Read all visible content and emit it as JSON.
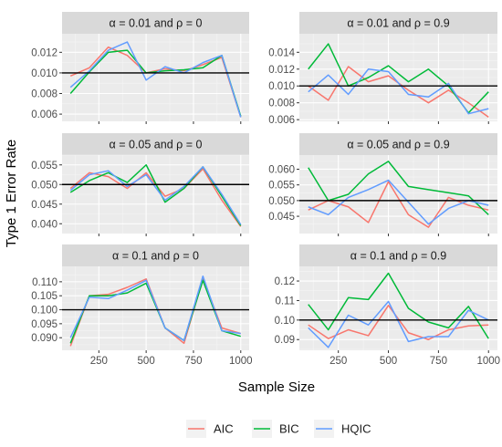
{
  "chart_data": {
    "type": "line",
    "xlabel": "Sample Size",
    "ylabel": "Type 1 Error Rate",
    "legend": {
      "position": "bottom",
      "entries": [
        "AIC",
        "BIC",
        "HQIC"
      ]
    },
    "colors": {
      "AIC": "#F8766D",
      "BIC": "#00BA38",
      "HQIC": "#619CFF"
    },
    "reference_line_color": "#000000",
    "grid": true,
    "xlim": [
      100,
      1000
    ],
    "xticks": [
      250,
      500,
      750,
      1000
    ],
    "x": [
      100,
      200,
      300,
      400,
      500,
      600,
      700,
      800,
      900,
      1000
    ],
    "panels": [
      {
        "title": "α = 0.01 and ρ = 0",
        "ylim": [
          0.0053,
          0.0138
        ],
        "yticks": [
          0.006,
          0.008,
          0.01,
          0.012
        ],
        "ytick_labels": [
          "0.006",
          "0.008",
          "0.010",
          "0.012"
        ],
        "reference": 0.01,
        "series": [
          {
            "name": "AIC",
            "values": [
              0.0097,
              0.0105,
              0.0125,
              0.0117,
              0.01,
              0.0104,
              0.0102,
              0.0108,
              0.0115,
              0.0057
            ]
          },
          {
            "name": "BIC",
            "values": [
              0.008,
              0.0101,
              0.012,
              0.0122,
              0.01,
              0.0102,
              0.0103,
              0.0105,
              0.0117,
              0.0058
            ]
          },
          {
            "name": "HQIC",
            "values": [
              0.0086,
              0.0102,
              0.0122,
              0.013,
              0.0093,
              0.0106,
              0.01,
              0.011,
              0.0117,
              0.0057
            ]
          }
        ]
      },
      {
        "title": "α = 0.01 and ρ = 0.9",
        "ylim": [
          0.0058,
          0.0162
        ],
        "yticks": [
          0.006,
          0.008,
          0.01,
          0.012,
          0.014
        ],
        "ytick_labels": [
          "0.006",
          "0.008",
          "0.010",
          "0.012",
          "0.014"
        ],
        "reference": 0.01,
        "series": [
          {
            "name": "AIC",
            "values": [
              0.01,
              0.0083,
              0.0123,
              0.0105,
              0.0112,
              0.0095,
              0.008,
              0.0095,
              0.008,
              0.0063
            ]
          },
          {
            "name": "BIC",
            "values": [
              0.012,
              0.015,
              0.01,
              0.011,
              0.0124,
              0.0105,
              0.012,
              0.01,
              0.0068,
              0.0093
            ]
          },
          {
            "name": "HQIC",
            "values": [
              0.0093,
              0.0113,
              0.009,
              0.012,
              0.0117,
              0.009,
              0.0087,
              0.0103,
              0.0067,
              0.0073
            ]
          }
        ]
      },
      {
        "title": "α = 0.05 and ρ = 0",
        "ylim": [
          0.0375,
          0.0575
        ],
        "yticks": [
          0.04,
          0.045,
          0.05,
          0.055
        ],
        "ytick_labels": [
          "0.040",
          "0.045",
          "0.050",
          "0.055"
        ],
        "reference": 0.05,
        "series": [
          {
            "name": "AIC",
            "values": [
              0.049,
              0.053,
              0.052,
              0.049,
              0.053,
              0.047,
              0.049,
              0.054,
              0.046,
              0.0393
            ]
          },
          {
            "name": "BIC",
            "values": [
              0.048,
              0.051,
              0.053,
              0.0505,
              0.055,
              0.0455,
              0.049,
              0.0545,
              0.047,
              0.0395
            ]
          },
          {
            "name": "HQIC",
            "values": [
              0.0485,
              0.0525,
              0.0535,
              0.0495,
              0.0525,
              0.046,
              0.0495,
              0.0545,
              0.0475,
              0.0398
            ]
          }
        ]
      },
      {
        "title": "α = 0.05 and ρ = 0.9",
        "ylim": [
          0.0395,
          0.0645
        ],
        "yticks": [
          0.045,
          0.05,
          0.055,
          0.06
        ],
        "ytick_labels": [
          "0.045",
          "0.050",
          "0.055",
          "0.060"
        ],
        "reference": 0.05,
        "series": [
          {
            "name": "AIC",
            "values": [
              0.047,
              0.05,
              0.048,
              0.043,
              0.056,
              0.0455,
              0.0415,
              0.051,
              0.0485,
              0.047
            ]
          },
          {
            "name": "BIC",
            "values": [
              0.0605,
              0.05,
              0.052,
              0.0585,
              0.0625,
              0.0545,
              0.0535,
              0.0525,
              0.0515,
              0.0455
            ]
          },
          {
            "name": "HQIC",
            "values": [
              0.048,
              0.0455,
              0.051,
              0.0535,
              0.0565,
              0.0495,
              0.0425,
              0.0475,
              0.05,
              0.0485
            ]
          }
        ]
      },
      {
        "title": "α = 0.1 and ρ = 0",
        "ylim": [
          0.0855,
          0.1155
        ],
        "yticks": [
          0.09,
          0.095,
          0.1,
          0.105,
          0.11
        ],
        "ytick_labels": [
          "0.090",
          "0.095",
          "0.100",
          "0.105",
          "0.110"
        ],
        "reference": 0.1,
        "series": [
          {
            "name": "AIC",
            "values": [
              0.087,
              0.105,
              0.1055,
              0.108,
              0.111,
              0.0935,
              0.088,
              0.111,
              0.0935,
              0.0915
            ]
          },
          {
            "name": "BIC",
            "values": [
              0.088,
              0.105,
              0.105,
              0.106,
              0.1095,
              0.0935,
              0.089,
              0.1105,
              0.0925,
              0.0905
            ]
          },
          {
            "name": "HQIC",
            "values": [
              0.09,
              0.1045,
              0.104,
              0.107,
              0.1105,
              0.0935,
              0.089,
              0.112,
              0.0925,
              0.0915
            ]
          }
        ]
      },
      {
        "title": "α = 0.1 and ρ = 0.9",
        "ylim": [
          0.0845,
          0.1275
        ],
        "yticks": [
          0.09,
          0.1,
          0.11,
          0.12
        ],
        "ytick_labels": [
          "0.09",
          "0.10",
          "0.11",
          "0.12"
        ],
        "reference": 0.1,
        "series": [
          {
            "name": "AIC",
            "values": [
              0.0975,
              0.0905,
              0.095,
              0.092,
              0.1075,
              0.0935,
              0.09,
              0.095,
              0.097,
              0.0975
            ]
          },
          {
            "name": "BIC",
            "values": [
              0.108,
              0.095,
              0.1115,
              0.1105,
              0.124,
              0.106,
              0.099,
              0.096,
              0.107,
              0.0905
            ]
          },
          {
            "name": "HQIC",
            "values": [
              0.096,
              0.086,
              0.1025,
              0.0975,
              0.1095,
              0.089,
              0.0915,
              0.0915,
              0.105,
              0.1
            ]
          }
        ]
      }
    ]
  }
}
